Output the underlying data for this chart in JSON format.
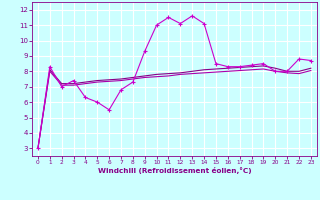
{
  "xlabel": "Windchill (Refroidissement éolien,°C)",
  "x_values": [
    0,
    1,
    2,
    3,
    4,
    5,
    6,
    7,
    8,
    9,
    10,
    11,
    12,
    13,
    14,
    15,
    16,
    17,
    18,
    19,
    20,
    21,
    22,
    23
  ],
  "line1": [
    3.0,
    8.3,
    7.0,
    7.4,
    6.3,
    6.0,
    5.5,
    6.8,
    7.3,
    9.3,
    11.0,
    11.5,
    11.1,
    11.6,
    11.1,
    8.5,
    8.3,
    8.3,
    8.4,
    8.5,
    8.0,
    8.0,
    8.8,
    8.7
  ],
  "line2": [
    3.0,
    8.1,
    7.2,
    7.2,
    7.3,
    7.4,
    7.45,
    7.5,
    7.6,
    7.7,
    7.8,
    7.85,
    7.9,
    8.0,
    8.1,
    8.15,
    8.2,
    8.25,
    8.3,
    8.35,
    8.2,
    8.0,
    8.0,
    8.2
  ],
  "line3": [
    3.0,
    8.0,
    7.1,
    7.1,
    7.2,
    7.3,
    7.35,
    7.4,
    7.5,
    7.6,
    7.65,
    7.7,
    7.8,
    7.85,
    7.9,
    7.95,
    8.0,
    8.05,
    8.1,
    8.15,
    8.0,
    7.9,
    7.85,
    8.05
  ],
  "line_color1": "#cc00cc",
  "line_color2": "#880088",
  "line_color3": "#aa00aa",
  "marker_color1": "#cc00cc",
  "bg_color": "#ccffff",
  "grid_color": "#ffffff",
  "ylim": [
    2.5,
    12.5
  ],
  "xlim": [
    -0.5,
    23.5
  ],
  "yticks": [
    3,
    4,
    5,
    6,
    7,
    8,
    9,
    10,
    11,
    12
  ],
  "xticks": [
    0,
    1,
    2,
    3,
    4,
    5,
    6,
    7,
    8,
    9,
    10,
    11,
    12,
    13,
    14,
    15,
    16,
    17,
    18,
    19,
    20,
    21,
    22,
    23
  ],
  "tick_color": "#880088",
  "label_color": "#880088",
  "spine_color": "#880088"
}
